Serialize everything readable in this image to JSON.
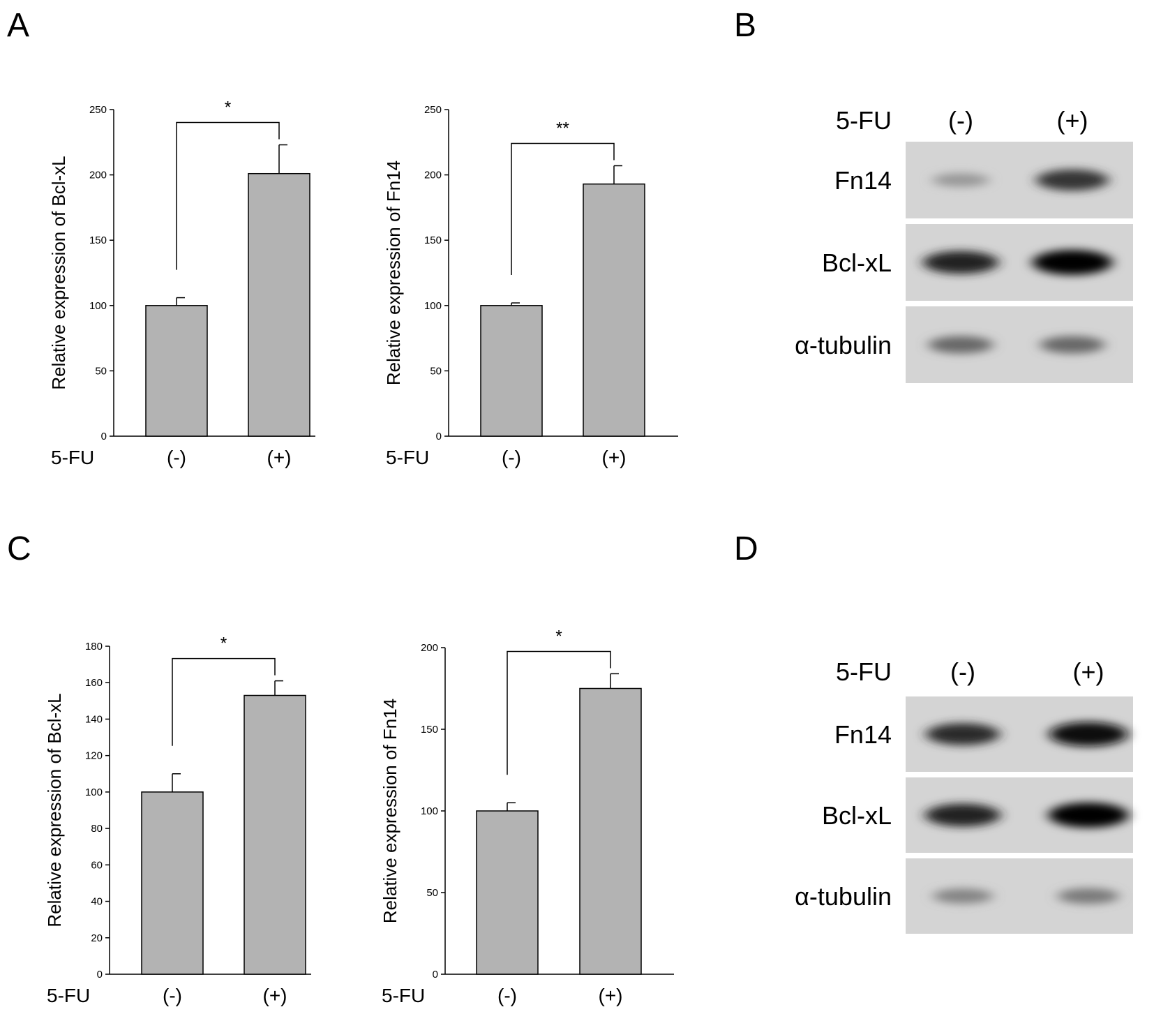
{
  "panels": {
    "A": "A",
    "B": "B",
    "C": "C",
    "D": "D"
  },
  "chart_data": [
    {
      "type": "bar",
      "panel": "A",
      "categories": [
        "(-)",
        "(+)"
      ],
      "category_axis_label": "5-FU",
      "values": [
        100,
        201
      ],
      "errors": [
        6,
        22
      ],
      "ylabel": "Relative expression of Bcl-xL",
      "ylim": [
        0,
        250
      ],
      "yticks": [
        0,
        50,
        100,
        150,
        200,
        250
      ],
      "significance": "*",
      "bar_color": "#b3b3b3"
    },
    {
      "type": "bar",
      "panel": "A",
      "categories": [
        "(-)",
        "(+)"
      ],
      "category_axis_label": "5-FU",
      "values": [
        100,
        193
      ],
      "errors": [
        2,
        14
      ],
      "ylabel": "Relative expression of Fn14",
      "ylim": [
        0,
        250
      ],
      "yticks": [
        0,
        50,
        100,
        150,
        200,
        250
      ],
      "significance": "**",
      "bar_color": "#b3b3b3"
    },
    {
      "type": "bar",
      "panel": "C",
      "categories": [
        "(-)",
        "(+)"
      ],
      "category_axis_label": "5-FU",
      "values": [
        100,
        153
      ],
      "errors": [
        10,
        8
      ],
      "ylabel": "Relative expression of Bcl-xL",
      "ylim": [
        0,
        180
      ],
      "yticks": [
        0,
        20,
        40,
        60,
        80,
        100,
        120,
        140,
        160,
        180
      ],
      "significance": "*",
      "bar_color": "#b3b3b3"
    },
    {
      "type": "bar",
      "panel": "C",
      "categories": [
        "(-)",
        "(+)"
      ],
      "category_axis_label": "5-FU",
      "values": [
        100,
        175
      ],
      "errors": [
        5,
        9
      ],
      "ylabel": "Relative expression of Fn14",
      "ylim": [
        0,
        200
      ],
      "yticks": [
        0,
        50,
        100,
        150,
        200
      ],
      "significance": "*",
      "bar_color": "#b3b3b3"
    }
  ],
  "blots": [
    {
      "panel": "B",
      "treatment_label": "5-FU",
      "lanes": [
        "(-)",
        "(+)"
      ],
      "rows": [
        {
          "label": "Fn14",
          "intensities": [
            0.25,
            0.75
          ]
        },
        {
          "label": "Bcl-xL",
          "intensities": [
            0.85,
            1.0
          ]
        },
        {
          "label": "α-tubulin",
          "intensities": [
            0.5,
            0.5
          ]
        }
      ]
    },
    {
      "panel": "D",
      "treatment_label": "5-FU",
      "lanes": [
        "(-)",
        "(+)"
      ],
      "rows": [
        {
          "label": "Fn14",
          "intensities": [
            0.8,
            0.95
          ]
        },
        {
          "label": "Bcl-xL",
          "intensities": [
            0.85,
            1.0
          ]
        },
        {
          "label": "α-tubulin",
          "intensities": [
            0.35,
            0.4
          ]
        }
      ]
    }
  ]
}
